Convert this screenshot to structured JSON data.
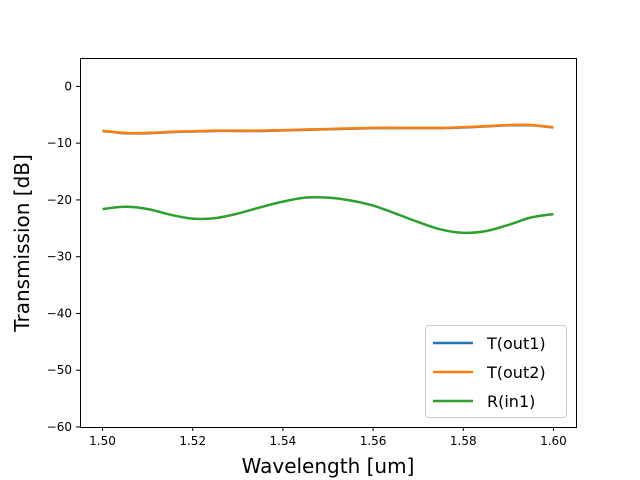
{
  "chart_data": {
    "type": "line",
    "title": "",
    "xlabel": "Wavelength [um]",
    "ylabel": "Transmission [dB]",
    "xlim": [
      1.495,
      1.605
    ],
    "ylim": [
      -60,
      5
    ],
    "xticks": [
      1.5,
      1.52,
      1.54,
      1.56,
      1.58,
      1.6
    ],
    "xtick_labels": [
      "1.50",
      "1.52",
      "1.54",
      "1.56",
      "1.58",
      "1.60"
    ],
    "yticks": [
      0,
      -10,
      -20,
      -30,
      -40,
      -50,
      -60
    ],
    "ytick_labels": [
      "0",
      "−10",
      "−20",
      "−30",
      "−40",
      "−50",
      "−60"
    ],
    "grid": false,
    "legend_position": "lower-right",
    "x": [
      1.5,
      1.505,
      1.51,
      1.515,
      1.52,
      1.525,
      1.53,
      1.535,
      1.54,
      1.545,
      1.55,
      1.555,
      1.56,
      1.565,
      1.57,
      1.575,
      1.58,
      1.585,
      1.59,
      1.595,
      1.6
    ],
    "series": [
      {
        "name": "T(out1)",
        "color": "#1f77b4",
        "values": [
          -7.85,
          -8.25,
          -8.25,
          -8.05,
          -7.95,
          -7.85,
          -7.85,
          -7.85,
          -7.75,
          -7.65,
          -7.55,
          -7.45,
          -7.35,
          -7.35,
          -7.35,
          -7.35,
          -7.25,
          -7.05,
          -6.85,
          -6.85,
          -7.25
        ]
      },
      {
        "name": "T(out2)",
        "color": "#ff7f0e",
        "values": [
          -7.8,
          -8.2,
          -8.2,
          -8.0,
          -7.9,
          -7.8,
          -7.8,
          -7.8,
          -7.7,
          -7.6,
          -7.5,
          -7.4,
          -7.3,
          -7.3,
          -7.3,
          -7.3,
          -7.2,
          -7.0,
          -6.8,
          -6.8,
          -7.2
        ]
      },
      {
        "name": "R(in1)",
        "color": "#2ca02c",
        "values": [
          -21.6,
          -21.2,
          -21.6,
          -22.6,
          -23.3,
          -23.2,
          -22.4,
          -21.3,
          -20.3,
          -19.6,
          -19.6,
          -20.1,
          -21.0,
          -22.4,
          -23.9,
          -25.2,
          -25.8,
          -25.5,
          -24.4,
          -23.1,
          -22.5
        ]
      }
    ]
  }
}
